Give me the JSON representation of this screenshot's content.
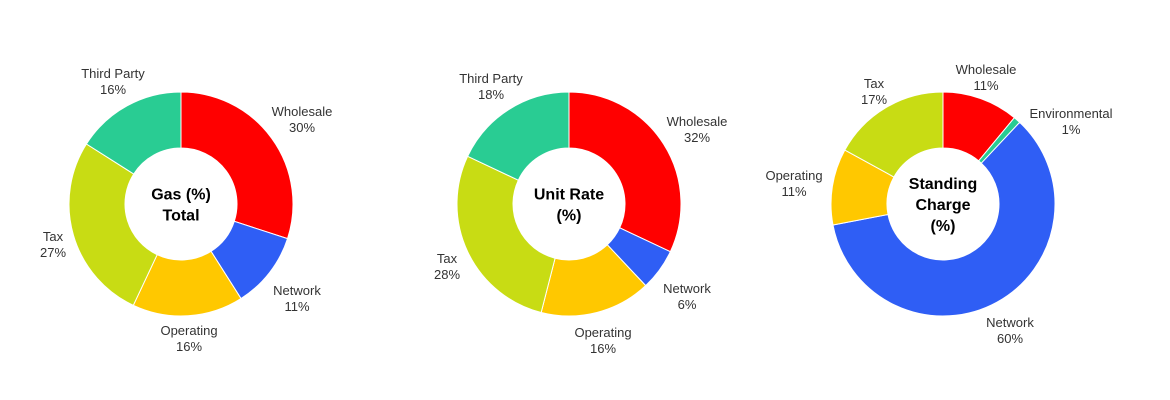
{
  "chart_data": [
    {
      "type": "pie",
      "title": "Gas (%) Total",
      "title_lines": [
        "Gas (%)",
        "Total"
      ],
      "slices": [
        {
          "name": "Wholesale",
          "value": 30,
          "label": "30%",
          "color": "#ff0000"
        },
        {
          "name": "Network",
          "value": 11,
          "label": "11%",
          "color": "#2f5ef5"
        },
        {
          "name": "Operating",
          "value": 16,
          "label": "16%",
          "color": "#ffc800"
        },
        {
          "name": "Tax",
          "value": 27,
          "label": "27%",
          "color": "#c8dc14"
        },
        {
          "name": "Third Party",
          "value": 16,
          "label": "16%",
          "color": "#29cc93"
        }
      ]
    },
    {
      "type": "pie",
      "title": "Unit Rate (%)",
      "title_lines": [
        "Unit Rate",
        "(%)"
      ],
      "slices": [
        {
          "name": "Wholesale",
          "value": 32,
          "label": "32%",
          "color": "#ff0000"
        },
        {
          "name": "Network",
          "value": 6,
          "label": "6%",
          "color": "#2f5ef5"
        },
        {
          "name": "Operating",
          "value": 16,
          "label": "16%",
          "color": "#ffc800"
        },
        {
          "name": "Tax",
          "value": 28,
          "label": "28%",
          "color": "#c8dc14"
        },
        {
          "name": "Third Party",
          "value": 18,
          "label": "18%",
          "color": "#29cc93"
        }
      ]
    },
    {
      "type": "pie",
      "title": "Standing Charge (%)",
      "title_lines": [
        "Standing",
        "Charge",
        "(%)"
      ],
      "slices": [
        {
          "name": "Wholesale",
          "value": 11,
          "label": "11%",
          "color": "#ff0000"
        },
        {
          "name": "Environmental",
          "value": 1,
          "label": "1%",
          "color": "#29cc93"
        },
        {
          "name": "Network",
          "value": 60,
          "label": "60%",
          "color": "#2f5ef5"
        },
        {
          "name": "Operating",
          "value": 11,
          "label": "11%",
          "color": "#ffc800"
        },
        {
          "name": "Tax",
          "value": 17,
          "label": "17%",
          "color": "#c8dc14"
        }
      ]
    }
  ]
}
